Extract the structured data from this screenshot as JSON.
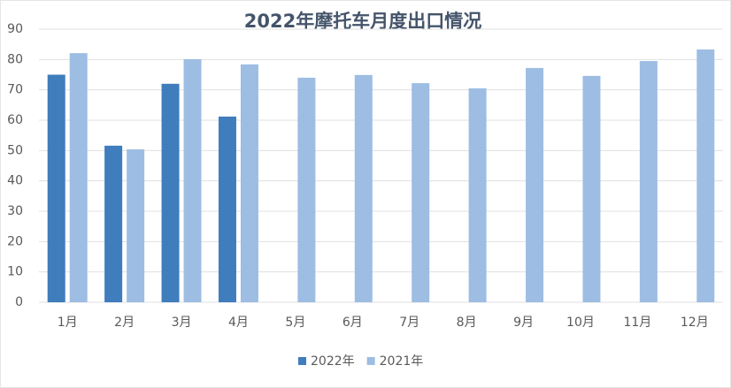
{
  "chart_data": {
    "type": "bar",
    "title": "2022年摩托车月度出口情况",
    "categories": [
      "1月",
      "2月",
      "3月",
      "4月",
      "5月",
      "6月",
      "7月",
      "8月",
      "9月",
      "10月",
      "11月",
      "12月"
    ],
    "series": [
      {
        "name": "2022年",
        "color": "#3f7dbd",
        "values": [
          75,
          51.6,
          72,
          61.2,
          null,
          null,
          null,
          null,
          null,
          null,
          null,
          null
        ]
      },
      {
        "name": "2021年",
        "color": "#9dbde3",
        "values": [
          82.1,
          50.4,
          80.1,
          78.4,
          74,
          74.9,
          72.2,
          70.5,
          77.2,
          74.6,
          79.5,
          83.3
        ]
      }
    ],
    "ylim": [
      0,
      90
    ],
    "yticks": [
      0,
      10,
      20,
      30,
      40,
      50,
      60,
      70,
      80,
      90
    ],
    "grid": true,
    "legend": "bottom"
  }
}
